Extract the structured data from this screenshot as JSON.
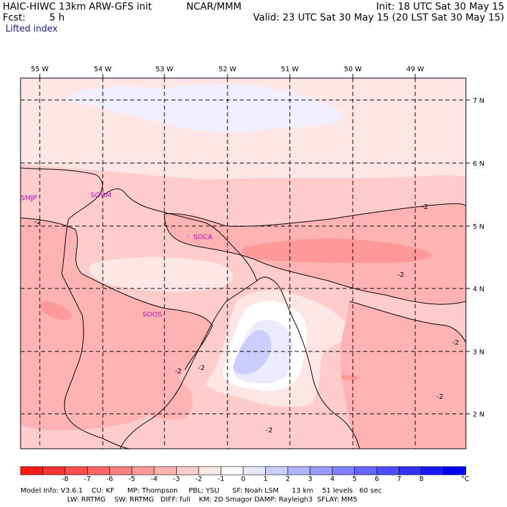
{
  "header": {
    "model": "HAIC-HIWC 13km ARW-GFS init",
    "org": "NCAR/MMM",
    "fcst_label": "Fcst:",
    "fcst_value": "5 h",
    "init": "Init: 18 UTC Sat 30 May 15",
    "valid": "Valid: 23 UTC Sat 30 May 15 (20 LST Sat 30 May 15)",
    "field": "Lifted index"
  },
  "map": {
    "lon_labels": [
      "55 W",
      "54 W",
      "53 W",
      "52 W",
      "51 W",
      "50 W",
      "49 W"
    ],
    "lat_labels": [
      "7 N",
      "6 N",
      "5 N",
      "4 N",
      "3 N",
      "2 N"
    ],
    "stations": [
      "SMJP",
      "SOGM",
      "SOCA",
      "SOOS"
    ],
    "contour_label": "-2"
  },
  "colorbar": {
    "colors": [
      "#ff1a1a",
      "#ff3333",
      "#ff4d4d",
      "#ff6666",
      "#ff8080",
      "#ff9999",
      "#ffb3b3",
      "#ffcccc",
      "#ffe6e6",
      "#ffffff",
      "#e6e6ff",
      "#ccccff",
      "#b3b3ff",
      "#9999ff",
      "#7f7fff",
      "#6666ff",
      "#4d4dff",
      "#3333ff",
      "#1a1aff",
      "#0000ff"
    ],
    "labels": [
      "-8",
      "-7",
      "-6",
      "-5",
      "-4",
      "-3",
      "-2",
      "-1",
      "0",
      "1",
      "2",
      "3",
      "4",
      "5",
      "6",
      "7",
      "8"
    ],
    "unit": "°C"
  },
  "footer": {
    "line1": "Model Info: V3.6.1    CU: KF      MP: Thompson     PBL: YSU      SF: Noah LSM      13 km    51 levels   60 sec",
    "line2": "LW: RRTMG    SW: RRTMG   DIFF: full    KM: 2D Smagor DAMP: Rayleigh3  SFLAY: MM5"
  }
}
